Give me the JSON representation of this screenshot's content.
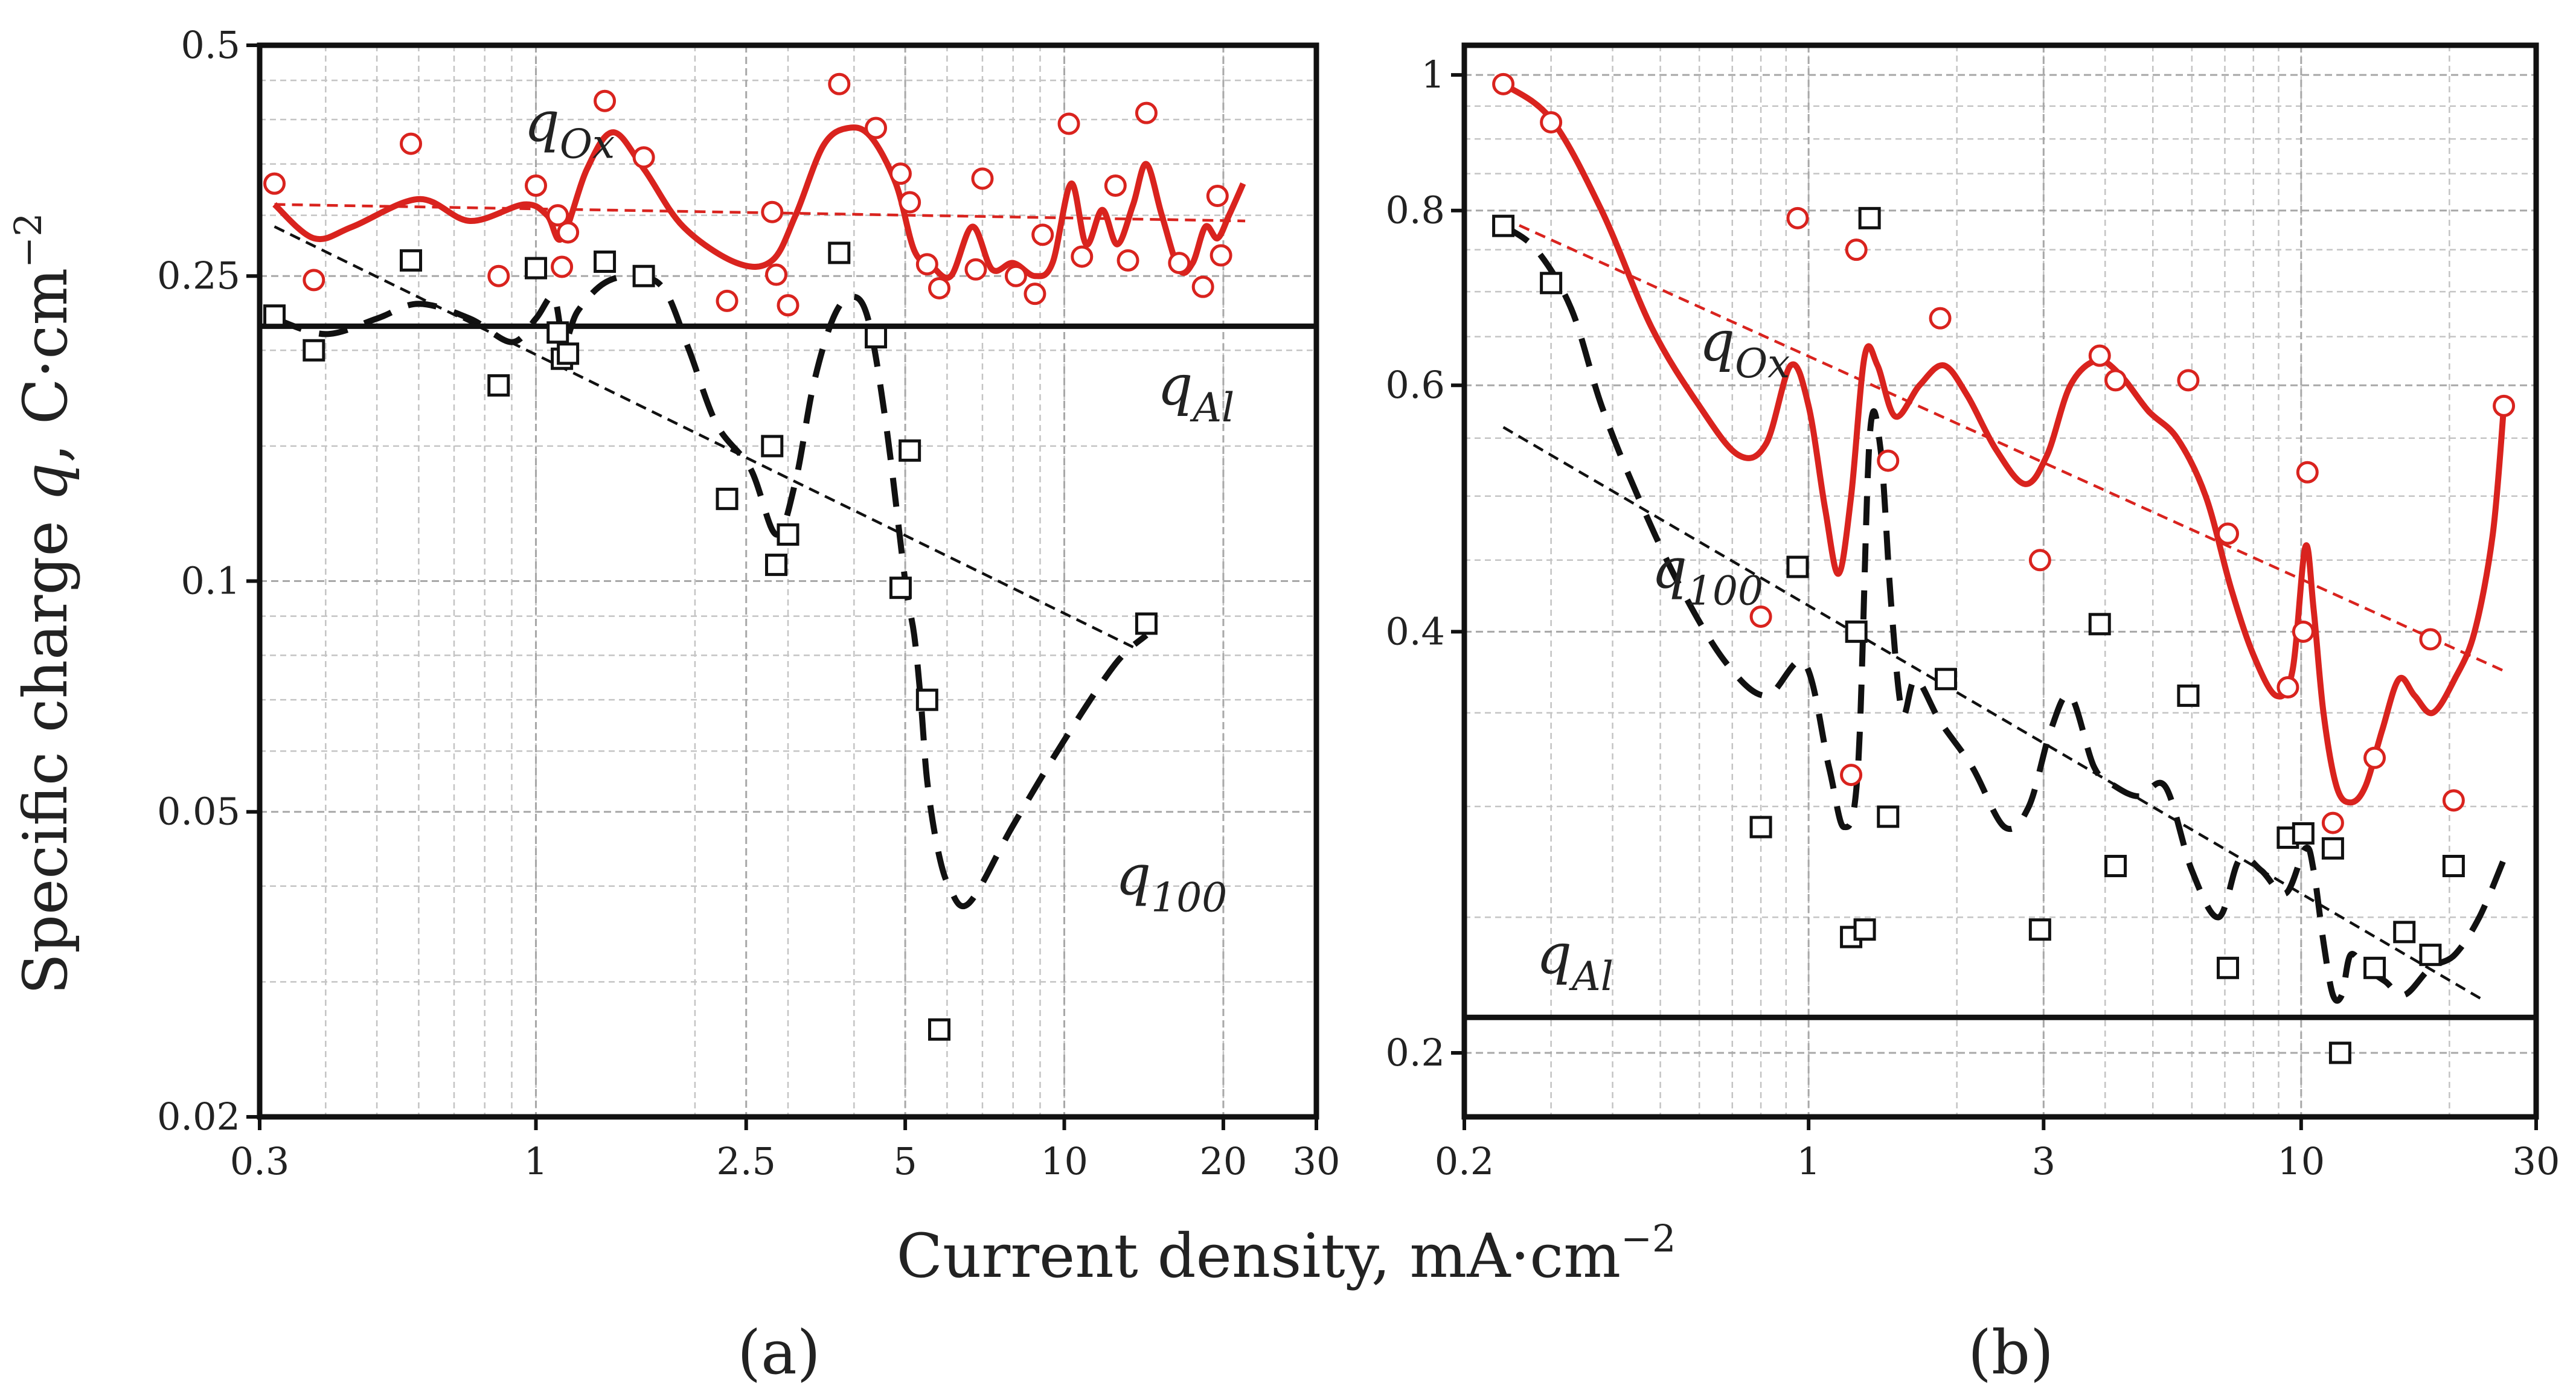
{
  "figure": {
    "ylabel_main": "Specific charge ",
    "ylabel_var": "q",
    "ylabel_unit": ", C·cm",
    "ylabel_exp": "−2",
    "xlabel_main": "Current density, mA·cm",
    "xlabel_exp": "−2"
  },
  "chart_data": [
    {
      "type": "scatter",
      "panel_label": "(a)",
      "x_scale": "log",
      "y_scale": "log",
      "xlim": [
        0.3,
        30
      ],
      "ylim": [
        0.02,
        0.5
      ],
      "xticks": [
        0.3,
        1,
        2.5,
        5,
        10,
        20,
        30
      ],
      "xtick_labels": [
        "0.3",
        "1",
        "2.5",
        "5",
        "10",
        "20",
        "30"
      ],
      "yticks": [
        0.02,
        0.05,
        0.1,
        0.25,
        0.5
      ],
      "ytick_labels": [
        "0.02",
        "0.05",
        "0.1",
        "0.25",
        "0.5"
      ],
      "grid": true,
      "series": [
        {
          "name": "q_Ox measured",
          "kind": "points",
          "marker": "circle",
          "color": "#d9231e",
          "x": [
            0.32,
            0.38,
            0.58,
            0.85,
            1.0,
            1.1,
            1.12,
            1.15,
            1.35,
            1.6,
            2.3,
            2.8,
            2.85,
            3.0,
            3.75,
            4.4,
            4.9,
            5.1,
            5.5,
            5.8,
            6.8,
            7.0,
            8.1,
            8.8,
            9.1,
            10.2,
            10.8,
            12.5,
            13.2,
            14.3,
            16.5,
            18.3,
            19.5,
            19.8
          ],
          "y": [
            0.33,
            0.247,
            0.372,
            0.25,
            0.328,
            0.3,
            0.257,
            0.285,
            0.423,
            0.357,
            0.232,
            0.303,
            0.251,
            0.229,
            0.445,
            0.39,
            0.34,
            0.312,
            0.259,
            0.241,
            0.255,
            0.335,
            0.25,
            0.237,
            0.283,
            0.395,
            0.265,
            0.328,
            0.262,
            0.408,
            0.26,
            0.242,
            0.318,
            0.266
          ]
        },
        {
          "name": "q_100 measured",
          "kind": "points",
          "marker": "square",
          "color": "#111111",
          "x": [
            0.32,
            0.38,
            0.58,
            0.85,
            1.0,
            1.1,
            1.12,
            1.15,
            1.35,
            1.6,
            2.3,
            2.8,
            2.85,
            3.0,
            3.75,
            4.4,
            4.9,
            5.1,
            5.5,
            5.8,
            14.3
          ],
          "y": [
            0.222,
            0.2,
            0.262,
            0.18,
            0.256,
            0.211,
            0.195,
            0.198,
            0.261,
            0.25,
            0.128,
            0.15,
            0.105,
            0.115,
            0.268,
            0.208,
            0.098,
            0.148,
            0.07,
            0.026,
            0.088
          ]
        },
        {
          "name": "q_Ox smooth",
          "kind": "line",
          "style": "solid",
          "color": "#d9231e",
          "x": [
            0.32,
            0.38,
            0.45,
            0.6,
            0.75,
            0.95,
            1.05,
            1.12,
            1.25,
            1.4,
            1.6,
            1.9,
            2.4,
            2.8,
            3.1,
            3.5,
            3.9,
            4.3,
            4.8,
            5.2,
            5.6,
            6.1,
            6.7,
            7.3,
            8.0,
            8.8,
            9.5,
            10.3,
            11.0,
            11.8,
            12.6,
            13.5,
            14.3,
            15.3,
            16.5,
            17.5,
            18.5,
            19.5,
            20.5,
            21.8
          ],
          "y": [
            0.31,
            0.28,
            0.29,
            0.315,
            0.295,
            0.31,
            0.3,
            0.28,
            0.345,
            0.385,
            0.345,
            0.29,
            0.26,
            0.262,
            0.3,
            0.37,
            0.39,
            0.38,
            0.33,
            0.27,
            0.258,
            0.25,
            0.29,
            0.255,
            0.26,
            0.25,
            0.26,
            0.33,
            0.275,
            0.305,
            0.275,
            0.31,
            0.35,
            0.3,
            0.255,
            0.26,
            0.29,
            0.28,
            0.3,
            0.33
          ]
        },
        {
          "name": "q_100 smooth",
          "kind": "line",
          "style": "long-dash",
          "color": "#111111",
          "x": [
            0.32,
            0.4,
            0.5,
            0.6,
            0.75,
            0.9,
            1.0,
            1.08,
            1.13,
            1.2,
            1.35,
            1.55,
            1.75,
            1.95,
            2.2,
            2.55,
            2.85,
            3.1,
            3.35,
            3.65,
            3.95,
            4.25,
            4.6,
            5.0,
            5.2,
            5.35,
            5.5,
            5.75,
            6.05,
            6.6,
            8.0,
            10.0,
            12.5,
            14.3
          ],
          "y": [
            0.22,
            0.21,
            0.22,
            0.23,
            0.22,
            0.205,
            0.22,
            0.235,
            0.205,
            0.225,
            0.245,
            0.25,
            0.24,
            0.2,
            0.16,
            0.14,
            0.115,
            0.135,
            0.18,
            0.22,
            0.235,
            0.22,
            0.16,
            0.1,
            0.085,
            0.07,
            0.055,
            0.045,
            0.04,
            0.038,
            0.048,
            0.062,
            0.078,
            0.085
          ]
        },
        {
          "name": "q_Ox trend",
          "kind": "line",
          "style": "dashed-thin",
          "color": "#d9231e",
          "x": [
            0.32,
            22.0
          ],
          "y": [
            0.31,
            0.295
          ]
        },
        {
          "name": "q_100 trend",
          "kind": "line",
          "style": "dashed-thin",
          "color": "#111111",
          "x": [
            0.32,
            13.5
          ],
          "y": [
            0.29,
            0.082
          ]
        },
        {
          "name": "q_Al",
          "kind": "line",
          "style": "solid-thick",
          "color": "#111111",
          "x": [
            0.3,
            30
          ],
          "y": [
            0.215,
            0.215
          ]
        }
      ],
      "annotations": [
        {
          "main": "q",
          "sub": "Ox",
          "x": 0.95,
          "y": 0.375
        },
        {
          "main": "q",
          "sub": "Al",
          "x": 15.0,
          "y": 0.17
        },
        {
          "main": "q",
          "sub": "100",
          "x": 12.5,
          "y": 0.039
        }
      ]
    },
    {
      "type": "scatter",
      "panel_label": "(b)",
      "x_scale": "log",
      "y_scale": "log",
      "xlim": [
        0.2,
        30
      ],
      "ylim": [
        0.18,
        1.05
      ],
      "xticks": [
        0.2,
        1,
        3,
        10,
        30
      ],
      "xtick_labels": [
        "0.2",
        "1",
        "3",
        "10",
        "30"
      ],
      "yticks": [
        0.2,
        0.4,
        0.6,
        0.8,
        1
      ],
      "ytick_labels": [
        "0.2",
        "0.4",
        "0.6",
        "0.8",
        "1"
      ],
      "grid": true,
      "series": [
        {
          "name": "q_Ox measured",
          "kind": "points",
          "marker": "circle",
          "color": "#d9231e",
          "x": [
            0.24,
            0.3,
            0.8,
            0.95,
            1.22,
            1.25,
            1.45,
            1.85,
            2.95,
            3.9,
            4.2,
            5.9,
            7.1,
            9.4,
            10.1,
            10.3,
            11.6,
            14.1,
            18.3,
            20.4,
            25.8
          ],
          "y": [
            0.985,
            0.925,
            0.41,
            0.79,
            0.316,
            0.75,
            0.53,
            0.67,
            0.45,
            0.63,
            0.605,
            0.605,
            0.47,
            0.365,
            0.4,
            0.52,
            0.292,
            0.325,
            0.395,
            0.303,
            0.58
          ]
        },
        {
          "name": "q_100 measured",
          "kind": "points",
          "marker": "square",
          "color": "#111111",
          "x": [
            0.24,
            0.3,
            0.8,
            0.95,
            1.22,
            1.25,
            1.3,
            1.33,
            1.45,
            1.9,
            2.95,
            3.9,
            4.2,
            5.9,
            7.1,
            9.4,
            10.1,
            11.6,
            12.0,
            14.1,
            16.2,
            18.3,
            20.4
          ],
          "y": [
            0.78,
            0.71,
            0.29,
            0.445,
            0.242,
            0.4,
            0.245,
            0.79,
            0.295,
            0.37,
            0.245,
            0.405,
            0.272,
            0.36,
            0.23,
            0.285,
            0.287,
            0.28,
            0.2,
            0.23,
            0.244,
            0.235,
            0.272
          ]
        },
        {
          "name": "q_Ox smooth",
          "kind": "line",
          "style": "solid",
          "color": "#d9231e",
          "x": [
            0.24,
            0.3,
            0.38,
            0.48,
            0.6,
            0.72,
            0.82,
            0.92,
            1.0,
            1.08,
            1.15,
            1.22,
            1.3,
            1.38,
            1.5,
            1.68,
            1.88,
            2.1,
            2.4,
            2.75,
            3.05,
            3.4,
            3.85,
            4.3,
            4.9,
            5.6,
            6.4,
            7.2,
            8.0,
            8.9,
            9.6,
            10.2,
            10.6,
            11.1,
            11.8,
            12.6,
            13.5,
            14.6,
            15.8,
            17.0,
            18.5,
            20.5,
            22.5,
            24.5,
            25.8
          ],
          "y": [
            0.985,
            0.93,
            0.8,
            0.66,
            0.58,
            0.535,
            0.545,
            0.62,
            0.58,
            0.49,
            0.44,
            0.5,
            0.63,
            0.62,
            0.57,
            0.6,
            0.62,
            0.59,
            0.54,
            0.51,
            0.535,
            0.6,
            0.625,
            0.61,
            0.575,
            0.55,
            0.5,
            0.43,
            0.385,
            0.36,
            0.375,
            0.46,
            0.415,
            0.35,
            0.31,
            0.302,
            0.31,
            0.34,
            0.37,
            0.36,
            0.35,
            0.37,
            0.4,
            0.47,
            0.58
          ]
        },
        {
          "name": "q_100 smooth",
          "kind": "line",
          "style": "long-dash",
          "color": "#111111",
          "x": [
            0.24,
            0.28,
            0.33,
            0.38,
            0.45,
            0.55,
            0.68,
            0.82,
            0.98,
            1.1,
            1.18,
            1.26,
            1.33,
            1.4,
            1.47,
            1.55,
            1.65,
            1.85,
            2.15,
            2.5,
            2.8,
            3.1,
            3.4,
            3.8,
            4.2,
            4.7,
            5.3,
            6.0,
            6.8,
            7.5,
            8.3,
            9.3,
            10.2,
            10.6,
            11.1,
            11.6,
            12.1,
            12.6,
            13.5,
            14.8,
            16.2,
            18.3,
            20.5,
            23.0,
            25.8
          ],
          "y": [
            0.78,
            0.75,
            0.68,
            0.58,
            0.5,
            0.43,
            0.38,
            0.36,
            0.38,
            0.32,
            0.29,
            0.32,
            0.55,
            0.54,
            0.42,
            0.35,
            0.37,
            0.345,
            0.32,
            0.29,
            0.3,
            0.34,
            0.36,
            0.32,
            0.31,
            0.305,
            0.31,
            0.27,
            0.25,
            0.275,
            0.27,
            0.26,
            0.28,
            0.27,
            0.24,
            0.22,
            0.22,
            0.235,
            0.23,
            0.225,
            0.22,
            0.23,
            0.235,
            0.25,
            0.275
          ]
        },
        {
          "name": "q_Ox trend",
          "kind": "line",
          "style": "dashed-thin",
          "color": "#d9231e",
          "x": [
            0.24,
            25.8
          ],
          "y": [
            0.79,
            0.375
          ]
        },
        {
          "name": "q_100 trend",
          "kind": "line",
          "style": "dashed-thin",
          "color": "#111111",
          "x": [
            0.24,
            23.5
          ],
          "y": [
            0.56,
            0.218
          ]
        },
        {
          "name": "q_Al",
          "kind": "line",
          "style": "solid-thick",
          "color": "#111111",
          "x": [
            0.2,
            30
          ],
          "y": [
            0.212,
            0.212
          ]
        }
      ],
      "annotations": [
        {
          "main": "q",
          "sub": "Ox",
          "x": 0.6,
          "y": 0.625
        },
        {
          "main": "q",
          "sub": "100",
          "x": 0.48,
          "y": 0.43
        },
        {
          "main": "q",
          "sub": "Al",
          "x": 0.28,
          "y": 0.228
        }
      ]
    }
  ]
}
